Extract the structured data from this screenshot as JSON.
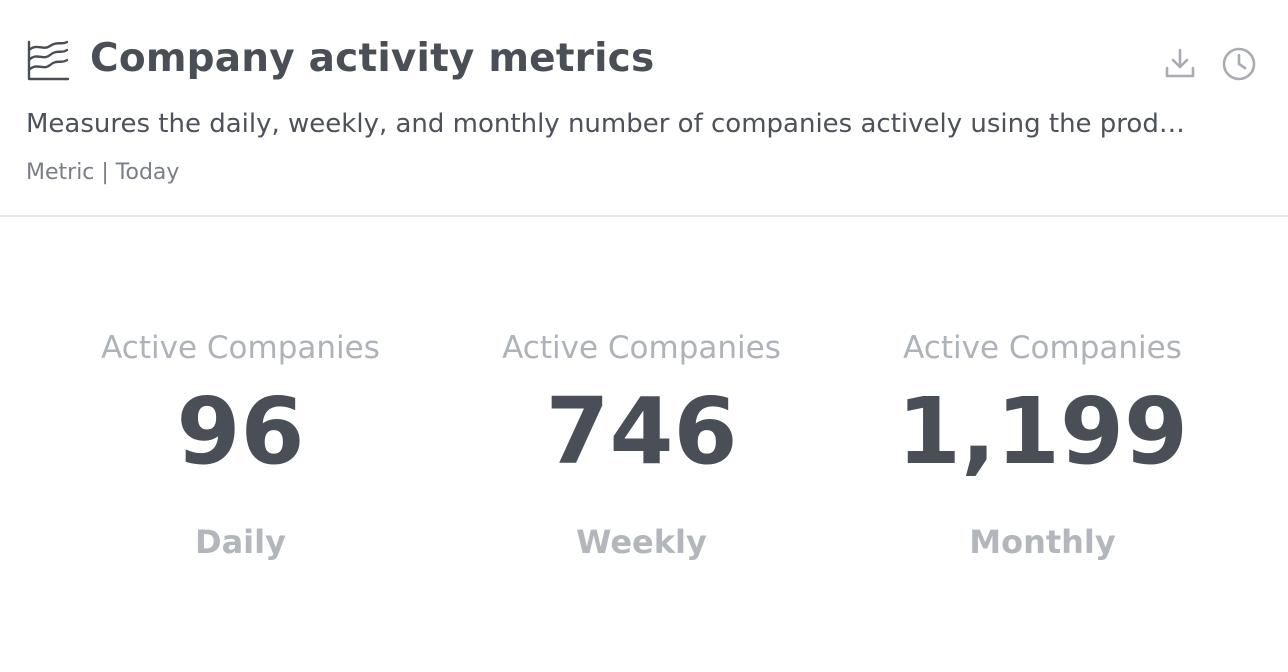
{
  "header": {
    "title": "Company activity metrics",
    "description": "Measures the daily, weekly, and monthly number of companies actively using the produ…",
    "meta": "Metric | Today",
    "title_icon": "line-chart-icon",
    "actions": [
      {
        "icon": "download-icon"
      },
      {
        "icon": "history-icon"
      }
    ]
  },
  "metrics": [
    {
      "label": "Active Companies",
      "value": "96",
      "period": "Daily"
    },
    {
      "label": "Active Companies",
      "value": "746",
      "period": "Weekly"
    },
    {
      "label": "Active Companies",
      "value": "1,199",
      "period": "Monthly"
    }
  ],
  "colors": {
    "text_dark": "#4a4f57",
    "text_muted": "#aeb3ba",
    "icon": "#a9adb3",
    "divider": "#e3e5e8"
  }
}
